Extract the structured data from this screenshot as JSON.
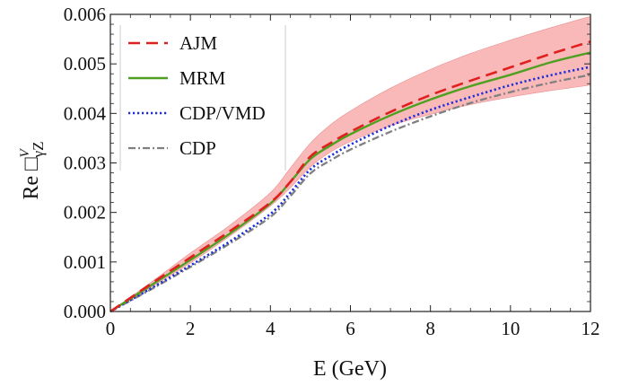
{
  "chart_data": {
    "type": "line",
    "title": "",
    "xlabel": "E (GeV)",
    "ylabel_main": "Re ",
    "ylabel_box": "□",
    "ylabel_sub": "γZ",
    "ylabel_sup": "V",
    "xlim": [
      0,
      12
    ],
    "ylim": [
      0,
      0.006
    ],
    "x_ticks": [
      0,
      2,
      4,
      6,
      8,
      10,
      12
    ],
    "x_tick_labels": [
      "0",
      "2",
      "4",
      "6",
      "8",
      "10",
      "12"
    ],
    "y_ticks": [
      0,
      0.001,
      0.002,
      0.003,
      0.004,
      0.005,
      0.006
    ],
    "y_tick_labels": [
      "0.000",
      "0.001",
      "0.002",
      "0.003",
      "0.004",
      "0.005",
      "0.006"
    ],
    "grid": false,
    "legend_position": "top-left",
    "x": [
      0,
      1,
      2,
      3,
      4,
      4.5,
      5,
      5.5,
      6,
      7,
      8,
      9,
      10,
      11,
      12
    ],
    "band": {
      "name": "AJM uncertainty",
      "color": "#f7a8a8",
      "lower": [
        0,
        0.00048,
        0.00098,
        0.00153,
        0.00213,
        0.0025,
        0.00292,
        0.00322,
        0.00343,
        0.00375,
        0.00398,
        0.00418,
        0.00433,
        0.00446,
        0.00457
      ],
      "upper": [
        0,
        0.00058,
        0.00118,
        0.00175,
        0.0024,
        0.0029,
        0.0034,
        0.00377,
        0.00405,
        0.00451,
        0.00489,
        0.00521,
        0.00548,
        0.00573,
        0.00596
      ]
    },
    "series": [
      {
        "name": "AJM",
        "color": "#e0201f",
        "style": "dashed",
        "values": [
          0,
          0.00055,
          0.00109,
          0.00163,
          0.0022,
          0.00262,
          0.00313,
          0.0034,
          0.00363,
          0.00403,
          0.00437,
          0.00466,
          0.00493,
          0.0052,
          0.00545
        ]
      },
      {
        "name": "MRM",
        "color": "#4fa021",
        "style": "solid",
        "values": [
          0,
          0.00052,
          0.00104,
          0.00158,
          0.00218,
          0.00262,
          0.00308,
          0.00335,
          0.00358,
          0.00396,
          0.00428,
          0.00455,
          0.00478,
          0.00503,
          0.00523
        ]
      },
      {
        "name": "CDP/VMD",
        "color": "#1f2fd8",
        "style": "dotted",
        "values": [
          0,
          0.00046,
          0.00093,
          0.00142,
          0.00197,
          0.0024,
          0.00287,
          0.00314,
          0.00337,
          0.00375,
          0.00407,
          0.00433,
          0.00457,
          0.00477,
          0.00494
        ]
      },
      {
        "name": "CDP",
        "color": "#808080",
        "style": "dashdot",
        "values": [
          0,
          0.00044,
          0.0009,
          0.00138,
          0.00191,
          0.00233,
          0.00279,
          0.00305,
          0.00327,
          0.00363,
          0.00394,
          0.00421,
          0.00443,
          0.00462,
          0.00478
        ]
      }
    ]
  }
}
